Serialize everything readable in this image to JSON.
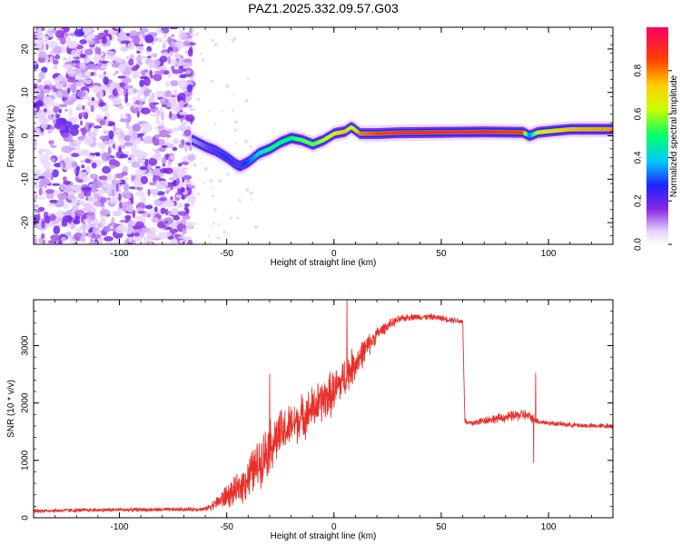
{
  "title": "PAZ1.2025.332.09.57.G03",
  "chart_data": [
    {
      "type": "heatmap",
      "xlabel": "Height of straight line (km)",
      "ylabel": "Frequency (Hz)",
      "xlim": [
        -140,
        130
      ],
      "ylim": [
        -25,
        25
      ],
      "xticks": [
        -100,
        -50,
        0,
        50,
        100
      ],
      "xtick_labels": [
        "-100",
        "-50",
        "0",
        "50",
        "100"
      ],
      "yticks": [
        -20,
        -10,
        0,
        10,
        20
      ],
      "ytick_labels": [
        "-20",
        "-10",
        "0",
        "10",
        "20"
      ],
      "colorbar": {
        "label": "Normalized spectral amplitude",
        "range": [
          0,
          1
        ],
        "ticks": [
          0.0,
          0.2,
          0.4,
          0.6,
          0.8
        ],
        "tick_labels": [
          "0.0",
          "0.2",
          "0.4",
          "0.6",
          "0.8"
        ]
      },
      "noise_region_x": [
        -140,
        -66
      ],
      "ridge": {
        "x": [
          -66,
          -60,
          -55,
          -50,
          -46,
          -44,
          -40,
          -35,
          -30,
          -25,
          -20,
          -15,
          -10,
          -5,
          0,
          5,
          8,
          12,
          20,
          30,
          50,
          70,
          88,
          91,
          95,
          110,
          130
        ],
        "frequency": [
          -1,
          -2.5,
          -3.5,
          -5,
          -6.5,
          -7,
          -6,
          -4,
          -3,
          -1.5,
          -0.5,
          -1,
          -2,
          -1,
          0.5,
          1,
          2,
          0.5,
          0.5,
          0.7,
          0.8,
          0.9,
          0.8,
          0,
          0.8,
          1.5,
          1.5
        ],
        "amplitude": [
          0.1,
          0.15,
          0.2,
          0.25,
          0.2,
          0.2,
          0.3,
          0.4,
          0.5,
          0.5,
          0.5,
          0.55,
          0.55,
          0.6,
          0.7,
          0.75,
          0.6,
          0.8,
          0.85,
          0.88,
          0.9,
          0.9,
          0.85,
          0.3,
          0.7,
          0.75,
          0.78
        ]
      }
    },
    {
      "type": "line",
      "xlabel": "Height of straight line (km)",
      "ylabel": "SNR (10 * v/v)",
      "xlim": [
        -140,
        130
      ],
      "ylim": [
        0,
        3800
      ],
      "xticks": [
        -100,
        -50,
        0,
        50,
        100
      ],
      "xtick_labels": [
        "-100",
        "-50",
        "0",
        "50",
        "100"
      ],
      "yticks": [
        0,
        1000,
        2000,
        3000
      ],
      "ytick_labels": [
        "0",
        "1000",
        "2000",
        "3000"
      ],
      "color": "#e8302a",
      "series": [
        {
          "name": "SNR",
          "x": [
            -140,
            -120,
            -100,
            -80,
            -60,
            -55,
            -50,
            -45,
            -40,
            -35,
            -30,
            -25,
            -20,
            -15,
            -10,
            -5,
            0,
            5,
            10,
            15,
            20,
            25,
            30,
            35,
            40,
            45,
            50,
            55,
            60,
            61,
            62,
            65,
            70,
            80,
            88,
            92,
            95,
            100,
            110,
            120,
            130
          ],
          "y": [
            120,
            130,
            140,
            140,
            150,
            250,
            380,
            480,
            700,
            950,
            1250,
            1450,
            1600,
            1750,
            1900,
            2050,
            2200,
            2450,
            2700,
            2950,
            3200,
            3350,
            3450,
            3500,
            3500,
            3500,
            3480,
            3450,
            3420,
            1700,
            1650,
            1650,
            1700,
            1750,
            1800,
            1750,
            1680,
            1650,
            1620,
            1600,
            1600
          ],
          "spread": [
            40,
            40,
            40,
            40,
            40,
            120,
            250,
            300,
            450,
            500,
            550,
            500,
            450,
            450,
            450,
            450,
            450,
            400,
            350,
            250,
            150,
            100,
            80,
            70,
            60,
            60,
            60,
            60,
            60,
            60,
            60,
            70,
            80,
            100,
            120,
            100,
            60,
            50,
            50,
            50,
            50
          ]
        }
      ],
      "spikes": [
        {
          "x": 6,
          "y": 3800
        },
        {
          "x": 94,
          "y": 2520
        },
        {
          "x": 93,
          "y": 960
        },
        {
          "x": -30,
          "y": 2500
        }
      ]
    }
  ]
}
